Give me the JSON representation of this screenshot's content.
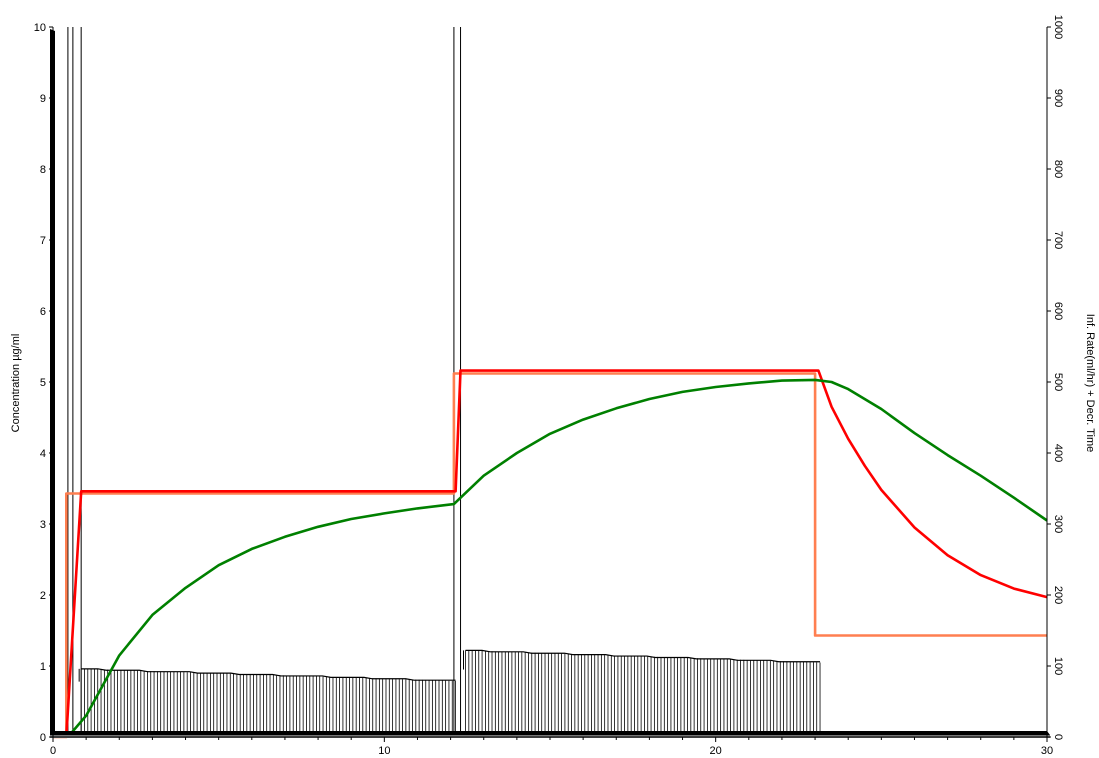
{
  "chart_data": {
    "type": "line",
    "title": "",
    "xlabel": "",
    "ylabel": "Concentration µg/ml",
    "y2label": "Inf. Rate(ml/hr) + Decr. Time",
    "xlim": [
      0,
      30
    ],
    "ylim": [
      0,
      10
    ],
    "y2lim": [
      0,
      1000
    ],
    "x_ticks": [
      0,
      10,
      20,
      30
    ],
    "y_ticks": [
      0,
      1,
      2,
      3,
      4,
      5,
      6,
      7,
      8,
      9,
      10
    ],
    "y2_ticks": [
      0,
      100,
      200,
      300,
      400,
      500,
      600,
      700,
      800,
      900,
      1000
    ],
    "grid": false,
    "series": [
      {
        "axis": "left",
        "color": "#ff7f50",
        "x": [
          0,
          0.35,
          0.4,
          0.4,
          12.1,
          12.1,
          23.0,
          23.0,
          30
        ],
        "y": [
          0,
          0,
          0,
          3.43,
          3.43,
          5.12,
          5.12,
          1.43,
          1.43
        ]
      },
      {
        "axis": "left",
        "color": "#ff0000",
        "x": [
          0.4,
          0.85,
          12.15,
          12.3,
          23.1,
          23.5,
          24,
          24.5,
          25,
          26,
          27,
          28,
          29,
          30
        ],
        "y": [
          0,
          3.46,
          3.46,
          5.16,
          5.16,
          4.65,
          4.2,
          3.82,
          3.48,
          2.95,
          2.56,
          2.28,
          2.09,
          1.97
        ]
      },
      {
        "axis": "left",
        "color": "#008000",
        "x": [
          0.45,
          1,
          2,
          3,
          4,
          5,
          6,
          7,
          8,
          9,
          10,
          11,
          12.1,
          13,
          14,
          15,
          16,
          17,
          18,
          19,
          20,
          21,
          22,
          23,
          23.5,
          24,
          25,
          26,
          27,
          28,
          29,
          30
        ],
        "y": [
          0,
          0.3,
          1.15,
          1.72,
          2.1,
          2.42,
          2.65,
          2.82,
          2.96,
          3.07,
          3.15,
          3.22,
          3.28,
          3.68,
          4.0,
          4.27,
          4.47,
          4.63,
          4.76,
          4.86,
          4.93,
          4.98,
          5.02,
          5.03,
          5.0,
          4.9,
          4.62,
          4.28,
          3.97,
          3.68,
          3.37,
          3.05
        ]
      },
      {
        "axis": "right",
        "color": "#000000",
        "type": "bar-profile",
        "x": [
          0.85,
          12.15,
          12.45,
          23.15
        ],
        "y": [
          96,
          79,
          122,
          105
        ]
      }
    ],
    "annotations": [
      {
        "x": 0.45,
        "y2": 1000
      },
      {
        "x": 0.6,
        "y2": 1000
      },
      {
        "x": 0.85,
        "y2": 1000
      },
      {
        "x": 12.1,
        "y2": 1000
      },
      {
        "x": 12.3,
        "y2": 1000
      }
    ]
  }
}
